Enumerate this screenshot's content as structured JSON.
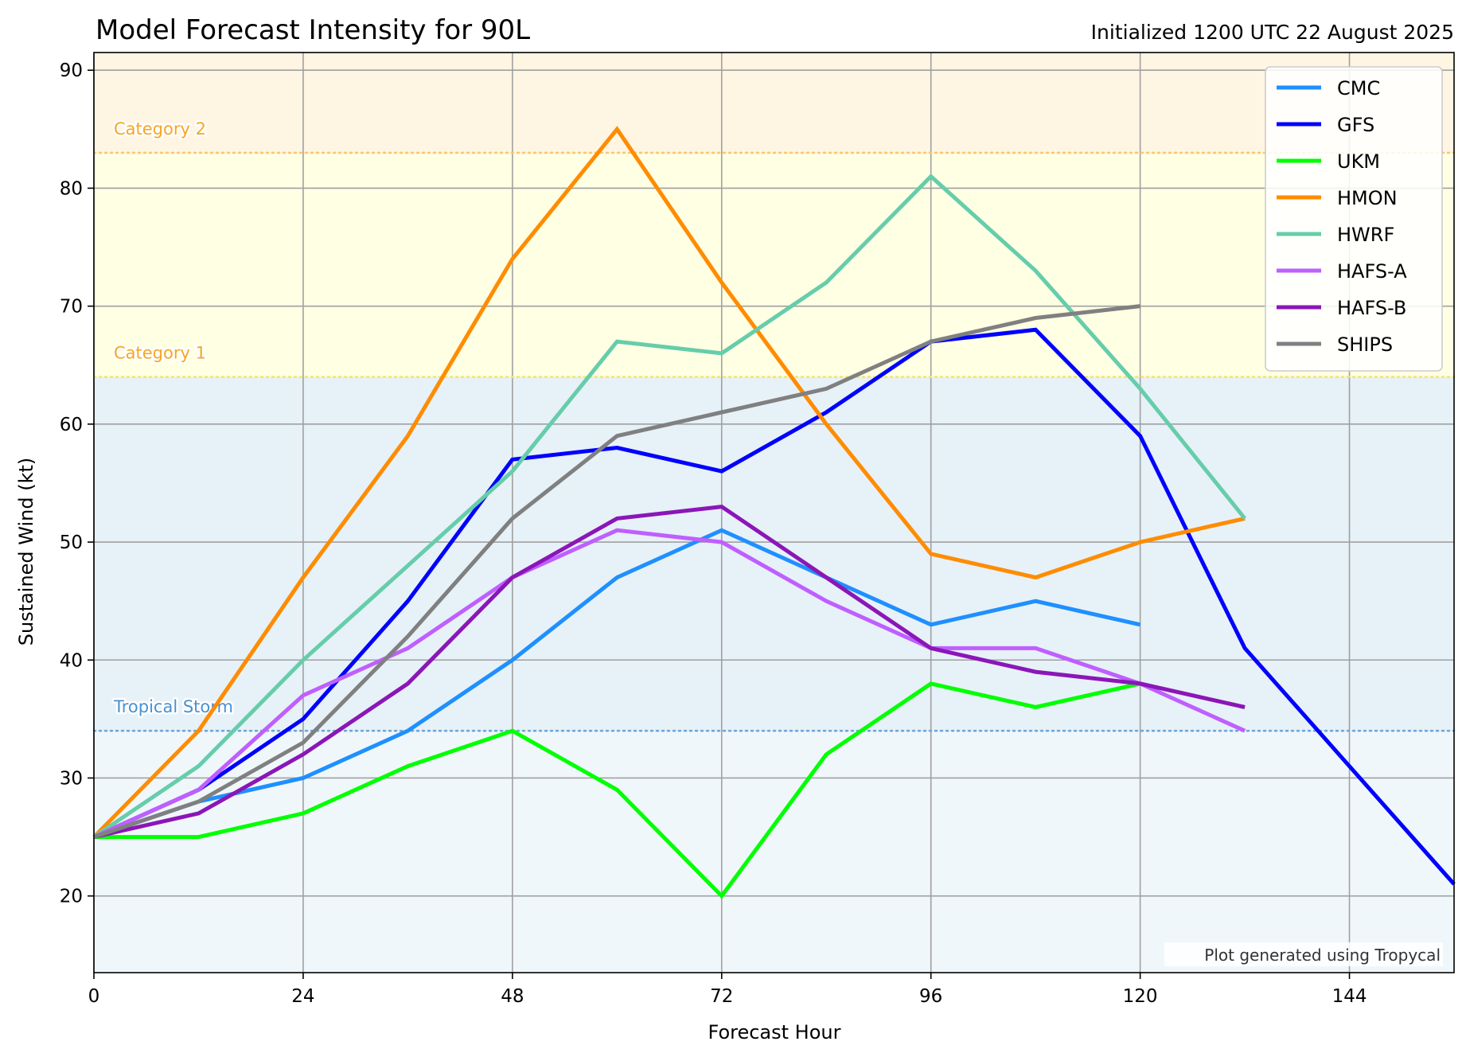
{
  "chart_data": {
    "type": "line",
    "title": "Model Forecast Intensity for 90L",
    "subtitle": "Initialized 1200 UTC 22 August 2025",
    "xlabel": "Forecast Hour",
    "ylabel": "Sustained Wind (kt)",
    "xlim": [
      0,
      156
    ],
    "ylim": [
      13.5,
      91.5
    ],
    "xticks": [
      0,
      24,
      48,
      72,
      96,
      120,
      144
    ],
    "yticks": [
      20,
      30,
      40,
      50,
      60,
      70,
      80,
      90
    ],
    "grid": true,
    "legend_position": "top-right",
    "credit": "Plot generated using Tropycal",
    "bands": [
      {
        "name": "below-ts",
        "from": 13.5,
        "to": 34,
        "color": "#f0f7fb"
      },
      {
        "name": "tropical-storm",
        "from": 34,
        "to": 64,
        "color": "#e7f1f8"
      },
      {
        "name": "category-1",
        "from": 64,
        "to": 83,
        "color": "#ffffe4"
      },
      {
        "name": "category-2",
        "from": 83,
        "to": 91.5,
        "color": "#fff5e3"
      }
    ],
    "thresholds": [
      {
        "label": "Tropical Storm",
        "value": 34,
        "color": "#6ea8d8",
        "text_color": "#4a90d0"
      },
      {
        "label": "Category 1",
        "value": 64,
        "color": "#f4e66a",
        "text_color": "#f5a623"
      },
      {
        "label": "Category 2",
        "value": 83,
        "color": "#f8c870",
        "text_color": "#f5a623"
      }
    ],
    "series": [
      {
        "name": "CMC",
        "color": "#1e90ff",
        "x": [
          0,
          12,
          24,
          36,
          48,
          60,
          72,
          84,
          96,
          108,
          120
        ],
        "y": [
          25,
          28,
          30,
          34,
          40,
          47,
          51,
          47,
          43,
          45,
          43
        ]
      },
      {
        "name": "GFS",
        "color": "#0000ff",
        "x": [
          0,
          12,
          24,
          36,
          48,
          60,
          72,
          84,
          96,
          108,
          120,
          132,
          144,
          156
        ],
        "y": [
          25,
          29,
          35,
          45,
          57,
          58,
          56,
          61,
          67,
          68,
          59,
          41,
          31,
          21
        ]
      },
      {
        "name": "UKM",
        "color": "#00ff00",
        "x": [
          0,
          12,
          24,
          36,
          48,
          60,
          72,
          84,
          96,
          108,
          120
        ],
        "y": [
          25,
          25,
          27,
          31,
          34,
          29,
          20,
          32,
          38,
          36,
          38
        ]
      },
      {
        "name": "HMON",
        "color": "#ff8c00",
        "x": [
          0,
          12,
          24,
          36,
          48,
          60,
          72,
          84,
          96,
          108,
          120,
          132
        ],
        "y": [
          25,
          34,
          47,
          59,
          74,
          85,
          72,
          60,
          49,
          47,
          50,
          52
        ]
      },
      {
        "name": "HWRF",
        "color": "#66cdaa",
        "x": [
          0,
          12,
          24,
          36,
          48,
          60,
          72,
          84,
          96,
          108,
          120,
          132
        ],
        "y": [
          25,
          31,
          40,
          48,
          56,
          67,
          66,
          72,
          81,
          73,
          63,
          52
        ]
      },
      {
        "name": "HAFS-A",
        "color": "#bf5fff",
        "x": [
          0,
          12,
          24,
          36,
          48,
          60,
          72,
          84,
          96,
          108,
          120,
          132
        ],
        "y": [
          25,
          29,
          37,
          41,
          47,
          51,
          50,
          45,
          41,
          41,
          38,
          34
        ]
      },
      {
        "name": "HAFS-B",
        "color": "#8b16b8",
        "x": [
          0,
          12,
          24,
          36,
          48,
          60,
          72,
          84,
          96,
          108,
          120,
          132
        ],
        "y": [
          25,
          27,
          32,
          38,
          47,
          52,
          53,
          47,
          41,
          39,
          38,
          36
        ]
      },
      {
        "name": "SHIPS",
        "color": "#808080",
        "x": [
          0,
          12,
          24,
          36,
          48,
          60,
          72,
          84,
          96,
          108,
          120
        ],
        "y": [
          25,
          28,
          33,
          42,
          52,
          59,
          61,
          63,
          67,
          69,
          70
        ]
      }
    ]
  }
}
